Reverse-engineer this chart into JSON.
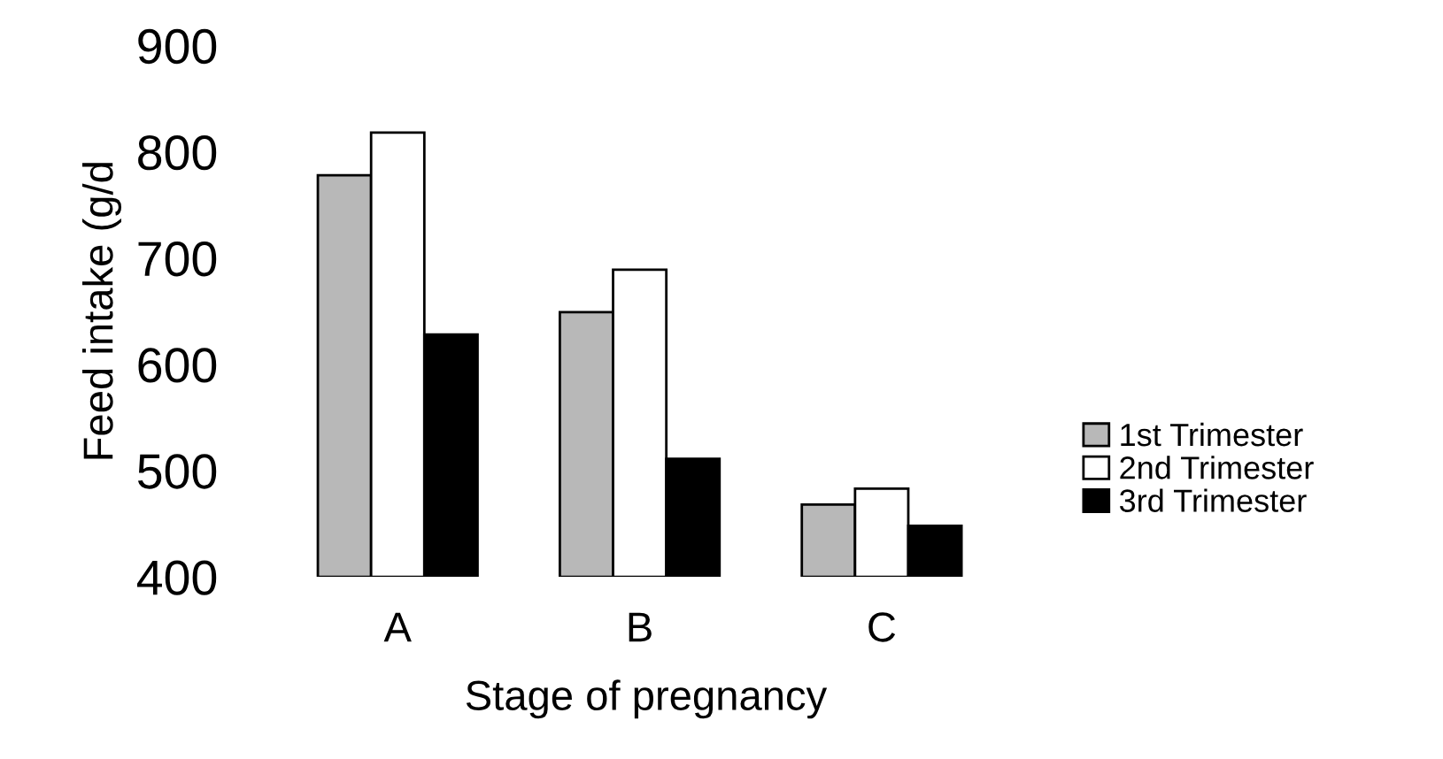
{
  "chart_data": {
    "type": "bar",
    "xlabel": "Stage of pregnancy",
    "ylabel": "Feed intake (g/d",
    "categories": [
      "A",
      "B",
      "C"
    ],
    "series": [
      {
        "name": "1st Trimester",
        "color": "#b8b8b8",
        "values": [
          778,
          649,
          468
        ]
      },
      {
        "name": "2nd Trimester",
        "color": "#ffffff",
        "values": [
          818,
          689,
          483
        ]
      },
      {
        "name": "3rd Trimester",
        "color": "#000000",
        "values": [
          628,
          511,
          448
        ]
      }
    ],
    "ylim": [
      400,
      900
    ],
    "yticks": [
      400,
      500,
      600,
      700,
      800,
      900
    ],
    "grid": false,
    "legend": "right"
  }
}
